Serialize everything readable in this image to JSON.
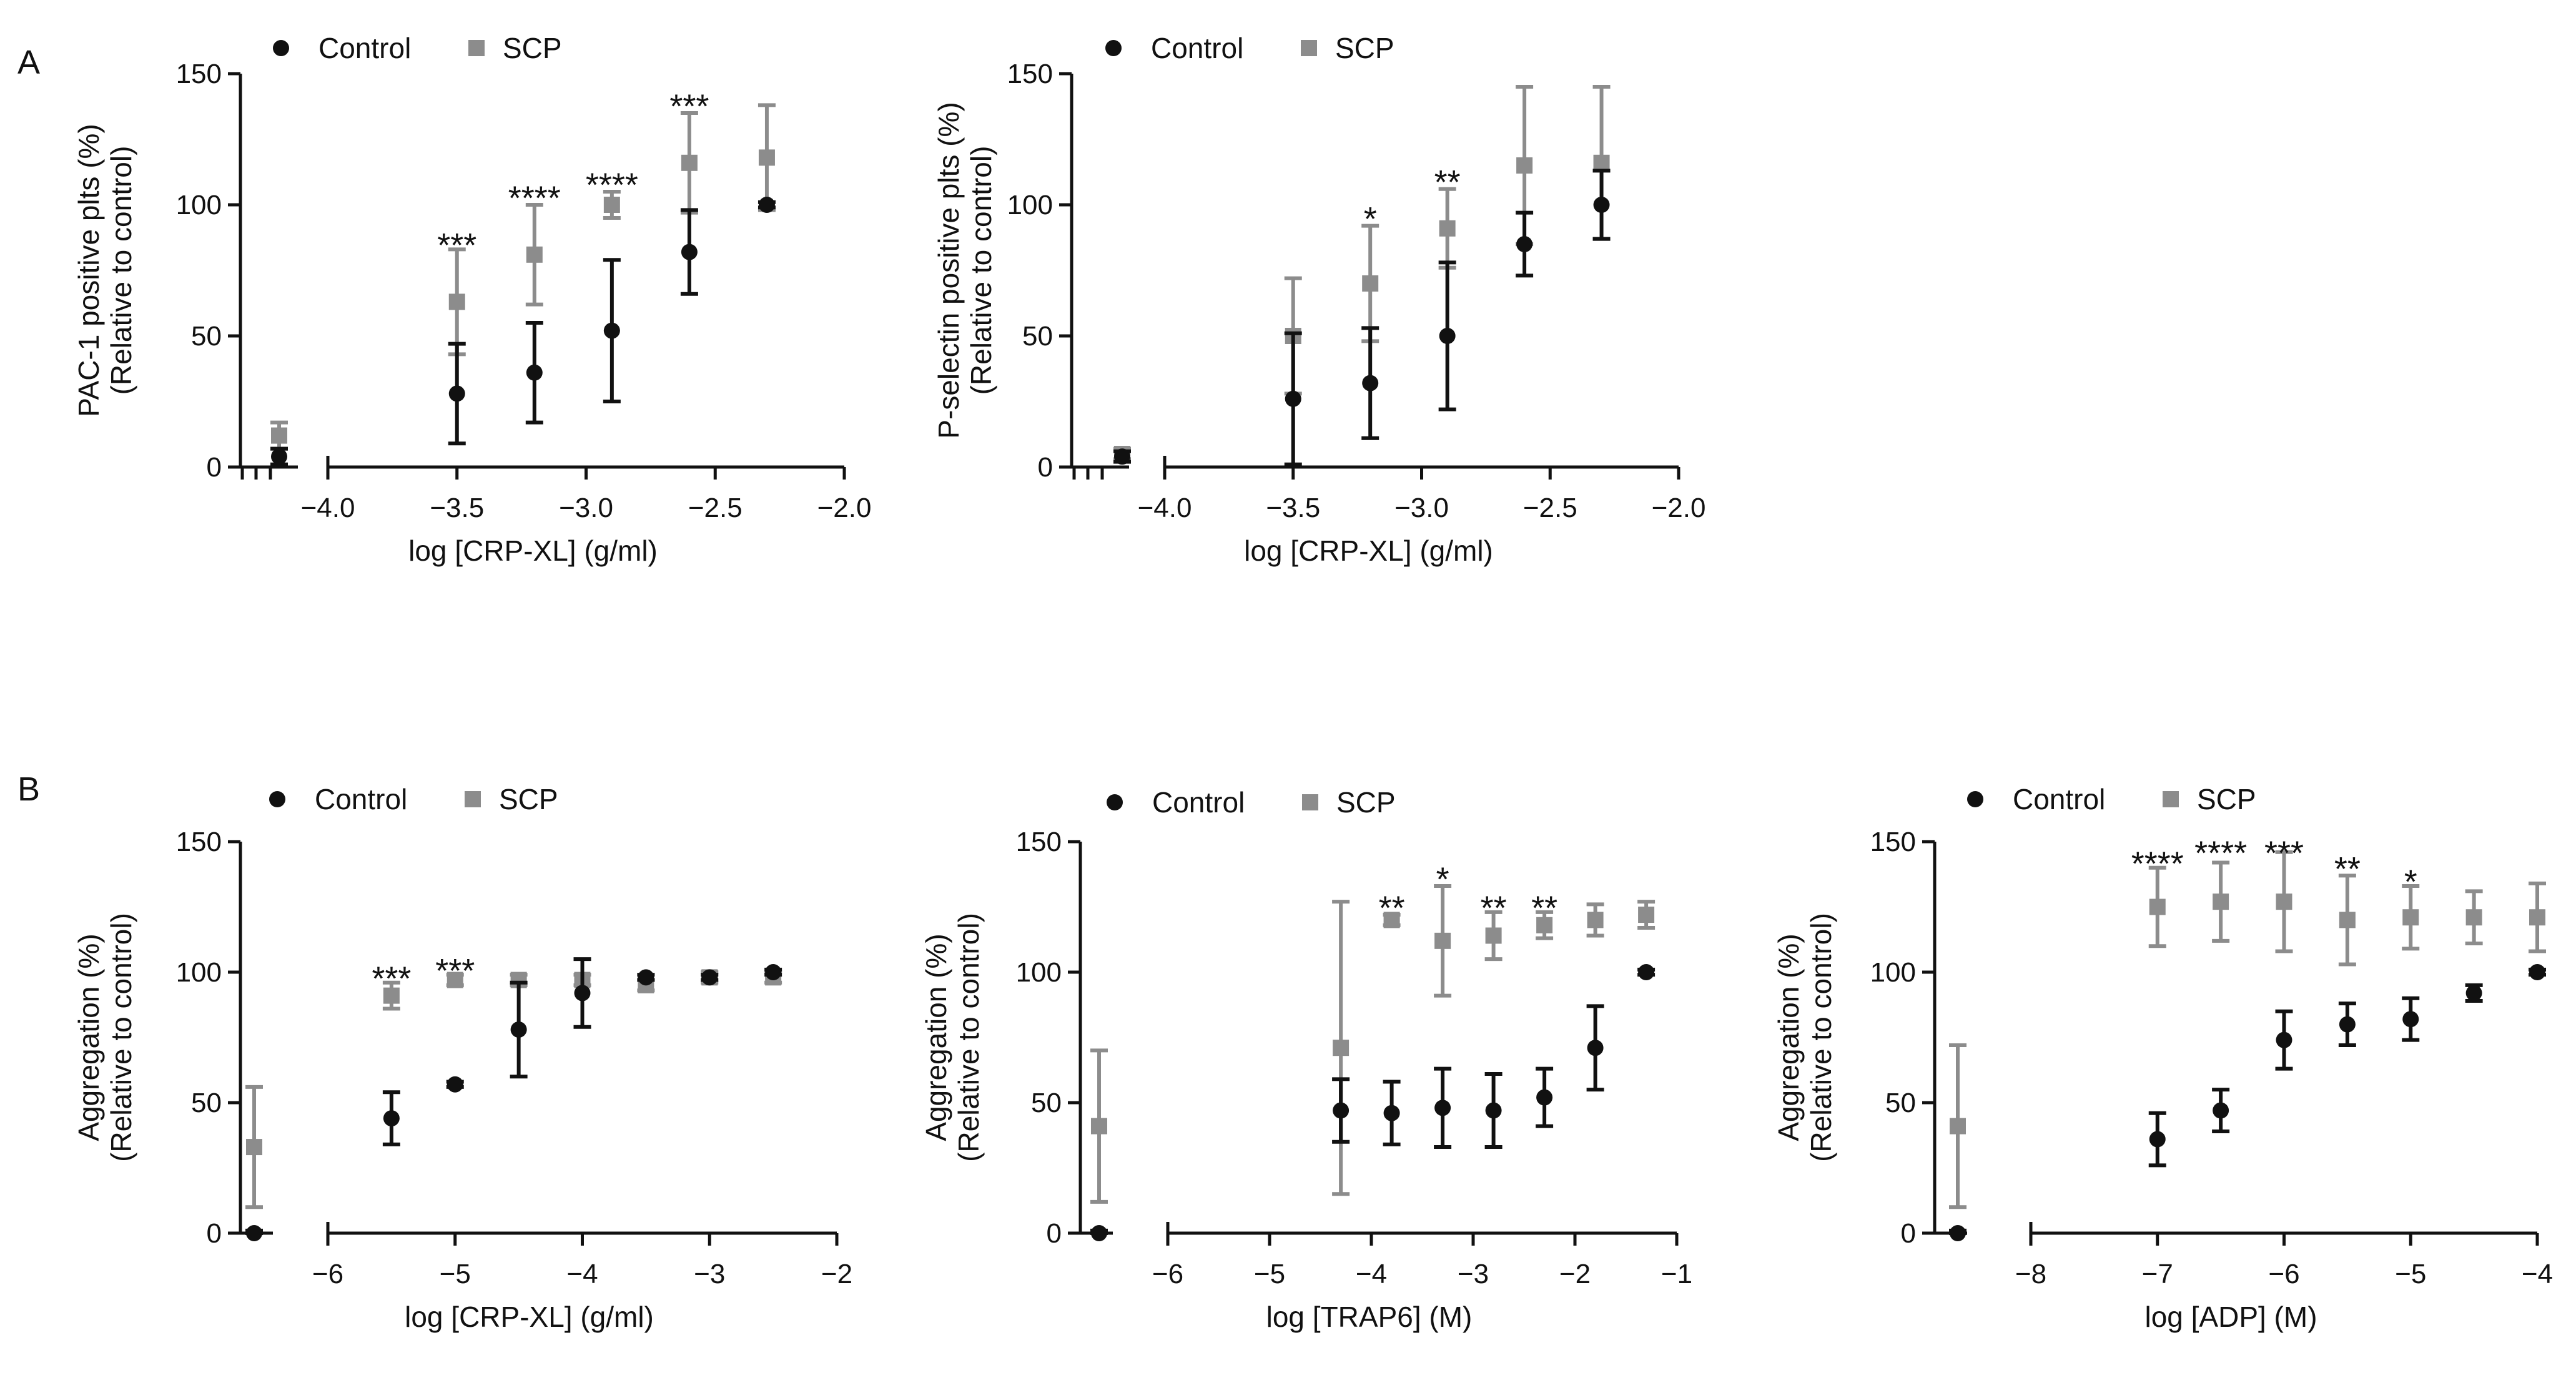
{
  "panels": {
    "A": "A",
    "B": "B"
  },
  "legend": {
    "control": "Control",
    "scp": "SCP"
  },
  "colors": {
    "control": "#111111",
    "scp": "#8c8c8c",
    "axis": "#111111"
  },
  "chart_data": [
    {
      "id": "a1",
      "type": "scatter",
      "panel": "A",
      "xlabel": "log [CRP-XL] (g/ml)",
      "ylabel": [
        "PAC-1 positive plts (%)",
        "(Relative to control)"
      ],
      "xlim": [
        -4.0,
        -2.0
      ],
      "ylim": [
        0,
        150
      ],
      "xticks": [
        "−4.0",
        "−3.5",
        "−3.0",
        "−2.5",
        "−2.0"
      ],
      "yticks": [
        "0",
        "50",
        "100",
        "150"
      ],
      "baseline": {
        "control": {
          "y": 4,
          "err": 3
        },
        "scp": {
          "y": 12,
          "err": 5
        }
      },
      "series": [
        {
          "name": "Control",
          "points": [
            {
              "x": -3.5,
              "y": 28,
              "err": 19
            },
            {
              "x": -3.2,
              "y": 36,
              "err": 19
            },
            {
              "x": -2.9,
              "y": 52,
              "err": 27
            },
            {
              "x": -2.6,
              "y": 82,
              "err": 16
            },
            {
              "x": -2.3,
              "y": 100,
              "err": 1
            }
          ]
        },
        {
          "name": "SCP",
          "points": [
            {
              "x": -3.5,
              "y": 63,
              "err": 20
            },
            {
              "x": -3.2,
              "y": 81,
              "err": 19
            },
            {
              "x": -2.9,
              "y": 100,
              "err": 5
            },
            {
              "x": -2.6,
              "y": 116,
              "err": 19
            },
            {
              "x": -2.3,
              "y": 118,
              "err": 20
            }
          ]
        }
      ],
      "annotations": [
        {
          "x": -3.5,
          "y": 85,
          "text": "***"
        },
        {
          "x": -3.2,
          "y": 103,
          "text": "****"
        },
        {
          "x": -2.9,
          "y": 108,
          "text": "****"
        },
        {
          "x": -2.6,
          "y": 138,
          "text": "***"
        }
      ]
    },
    {
      "id": "a2",
      "type": "scatter",
      "panel": "A",
      "xlabel": "log [CRP-XL] (g/ml)",
      "ylabel": [
        "P-selectin positive plts (%)",
        "(Relative to control)"
      ],
      "xlim": [
        -4.0,
        -2.0
      ],
      "ylim": [
        0,
        150
      ],
      "xticks": [
        "−4.0",
        "−3.5",
        "−3.0",
        "−2.5",
        "−2.0"
      ],
      "yticks": [
        "0",
        "50",
        "100",
        "150"
      ],
      "baseline": {
        "control": {
          "y": 4,
          "err": 2
        },
        "scp": {
          "y": 5,
          "err": 2
        }
      },
      "series": [
        {
          "name": "Control",
          "points": [
            {
              "x": -3.5,
              "y": 26,
              "err": 25
            },
            {
              "x": -3.2,
              "y": 32,
              "err": 21
            },
            {
              "x": -2.9,
              "y": 50,
              "err": 28
            },
            {
              "x": -2.6,
              "y": 85,
              "err": 12
            },
            {
              "x": -2.3,
              "y": 100,
              "err": 13
            }
          ]
        },
        {
          "name": "SCP",
          "points": [
            {
              "x": -3.5,
              "y": 50,
              "err": 22
            },
            {
              "x": -3.2,
              "y": 70,
              "err": 22
            },
            {
              "x": -2.9,
              "y": 91,
              "err": 15
            },
            {
              "x": -2.6,
              "y": 115,
              "err": 30
            },
            {
              "x": -2.3,
              "y": 116,
              "err": 29
            }
          ]
        }
      ],
      "annotations": [
        {
          "x": -3.2,
          "y": 95,
          "text": "*"
        },
        {
          "x": -2.9,
          "y": 109,
          "text": "**"
        }
      ]
    },
    {
      "id": "b1",
      "type": "scatter",
      "panel": "B",
      "xlabel": "log [CRP-XL] (g/ml)",
      "ylabel": [
        "Aggregation (%)",
        "(Relative to control)"
      ],
      "xlim": [
        -6,
        -2
      ],
      "ylim": [
        0,
        150
      ],
      "xticks": [
        "−6",
        "−5",
        "−4",
        "−3",
        "−2"
      ],
      "yticks": [
        "0",
        "50",
        "100",
        "150"
      ],
      "baseline": {
        "control": {
          "y": 0,
          "err": 1
        },
        "scp": {
          "y": 33,
          "err": 23
        }
      },
      "series": [
        {
          "name": "Control",
          "points": [
            {
              "x": -5.5,
              "y": 44,
              "err": 10
            },
            {
              "x": -5.0,
              "y": 57,
              "err": 1
            },
            {
              "x": -4.5,
              "y": 78,
              "err": 18
            },
            {
              "x": -4.0,
              "y": 92,
              "err": 13
            },
            {
              "x": -3.5,
              "y": 98,
              "err": 1
            },
            {
              "x": -3.0,
              "y": 98,
              "err": 1
            },
            {
              "x": -2.5,
              "y": 100,
              "err": 1
            }
          ]
        },
        {
          "name": "SCP",
          "points": [
            {
              "x": -5.5,
              "y": 91,
              "err": 5
            },
            {
              "x": -5.0,
              "y": 97,
              "err": 2
            },
            {
              "x": -4.5,
              "y": 97,
              "err": 2
            },
            {
              "x": -4.0,
              "y": 97,
              "err": 2
            },
            {
              "x": -3.5,
              "y": 95,
              "err": 2
            },
            {
              "x": -3.0,
              "y": 98,
              "err": 2
            },
            {
              "x": -2.5,
              "y": 98,
              "err": 2
            }
          ]
        }
      ],
      "annotations": [
        {
          "x": -5.5,
          "y": 98,
          "text": "***"
        },
        {
          "x": -5.0,
          "y": 101,
          "text": "***"
        }
      ]
    },
    {
      "id": "b2",
      "type": "scatter",
      "panel": "B",
      "xlabel": "log [TRAP6] (M)",
      "ylabel": [
        "Aggregation (%)",
        "(Relative to control)"
      ],
      "xlim": [
        -6,
        -1
      ],
      "ylim": [
        0,
        150
      ],
      "xticks": [
        "−6",
        "−5",
        "−4",
        "−3",
        "−2",
        "−1"
      ],
      "yticks": [
        "0",
        "50",
        "100",
        "150"
      ],
      "baseline": {
        "control": {
          "y": 0,
          "err": 1
        },
        "scp": {
          "y": 41,
          "err": 29
        }
      },
      "series": [
        {
          "name": "Control",
          "points": [
            {
              "x": -4.3,
              "y": 47,
              "err": 12
            },
            {
              "x": -3.8,
              "y": 46,
              "err": 12
            },
            {
              "x": -3.3,
              "y": 48,
              "err": 15
            },
            {
              "x": -2.8,
              "y": 47,
              "err": 14
            },
            {
              "x": -2.3,
              "y": 52,
              "err": 11
            },
            {
              "x": -1.8,
              "y": 71,
              "err": 16
            },
            {
              "x": -1.3,
              "y": 100,
              "err": 1
            }
          ]
        },
        {
          "name": "SCP",
          "points": [
            {
              "x": -4.3,
              "y": 71,
              "err": 56
            },
            {
              "x": -3.8,
              "y": 120,
              "err": 2
            },
            {
              "x": -3.3,
              "y": 112,
              "err": 21
            },
            {
              "x": -2.8,
              "y": 114,
              "err": 9
            },
            {
              "x": -2.3,
              "y": 118,
              "err": 5
            },
            {
              "x": -1.8,
              "y": 120,
              "err": 6
            },
            {
              "x": -1.3,
              "y": 122,
              "err": 5
            }
          ]
        }
      ],
      "annotations": [
        {
          "x": -3.8,
          "y": 125,
          "text": "**"
        },
        {
          "x": -3.3,
          "y": 136,
          "text": "*"
        },
        {
          "x": -2.8,
          "y": 125,
          "text": "**"
        },
        {
          "x": -2.3,
          "y": 125,
          "text": "**"
        }
      ]
    },
    {
      "id": "b3",
      "type": "scatter",
      "panel": "B",
      "xlabel": "log [ADP] (M)",
      "ylabel": [
        "Aggregation (%)",
        "(Relative to control)"
      ],
      "xlim": [
        -8,
        -4
      ],
      "ylim": [
        0,
        150
      ],
      "xticks": [
        "−8",
        "−7",
        "−6",
        "−5",
        "−4"
      ],
      "yticks": [
        "0",
        "50",
        "100",
        "150"
      ],
      "baseline": {
        "control": {
          "y": 0,
          "err": 1
        },
        "scp": {
          "y": 41,
          "err": 31
        }
      },
      "series": [
        {
          "name": "Control",
          "points": [
            {
              "x": -7.0,
              "y": 36,
              "err": 10
            },
            {
              "x": -6.5,
              "y": 47,
              "err": 8
            },
            {
              "x": -6.0,
              "y": 74,
              "err": 11
            },
            {
              "x": -5.5,
              "y": 80,
              "err": 8
            },
            {
              "x": -5.0,
              "y": 82,
              "err": 8
            },
            {
              "x": -4.5,
              "y": 92,
              "err": 3
            },
            {
              "x": -4.0,
              "y": 100,
              "err": 1
            }
          ]
        },
        {
          "name": "SCP",
          "points": [
            {
              "x": -7.0,
              "y": 125,
              "err": 15
            },
            {
              "x": -6.5,
              "y": 127,
              "err": 15
            },
            {
              "x": -6.0,
              "y": 127,
              "err": 19
            },
            {
              "x": -5.5,
              "y": 120,
              "err": 17
            },
            {
              "x": -5.0,
              "y": 121,
              "err": 12
            },
            {
              "x": -4.5,
              "y": 121,
              "err": 10
            },
            {
              "x": -4.0,
              "y": 121,
              "err": 13
            }
          ]
        }
      ],
      "annotations": [
        {
          "x": -7.0,
          "y": 142,
          "text": "****"
        },
        {
          "x": -6.5,
          "y": 146,
          "text": "****"
        },
        {
          "x": -6.0,
          "y": 146,
          "text": "***"
        },
        {
          "x": -5.5,
          "y": 140,
          "text": "**"
        },
        {
          "x": -5.0,
          "y": 135,
          "text": "*"
        }
      ]
    }
  ]
}
